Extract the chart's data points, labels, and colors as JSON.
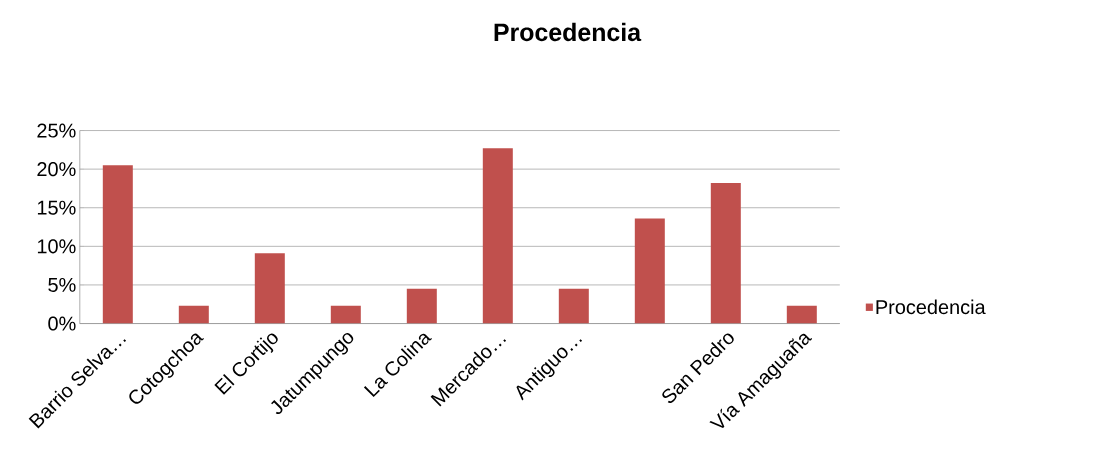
{
  "chart_data": {
    "type": "bar",
    "title": "Procedencia",
    "categories": [
      "Barrio Selva…",
      "Cotogchoa",
      "El Cortijo",
      "Jatumpungo",
      "La Colina",
      "Mercado…",
      "Antiguo…",
      null,
      "San Pedro",
      "Vía Amaguaña"
    ],
    "series": [
      {
        "name": "Procedencia",
        "color": "#c0504d",
        "values": [
          20.5,
          2.3,
          9.1,
          2.3,
          4.5,
          22.7,
          4.5,
          13.6,
          18.2,
          2.3
        ]
      }
    ],
    "ylim": [
      0,
      25
    ],
    "yticks": [
      {
        "value": 0,
        "label": "0%"
      },
      {
        "value": 5,
        "label": "5%"
      },
      {
        "value": 10,
        "label": "10%"
      },
      {
        "value": 15,
        "label": "15%"
      },
      {
        "value": 20,
        "label": "20%"
      },
      {
        "value": 25,
        "label": "25%"
      }
    ],
    "grid": "y",
    "legend": "right"
  }
}
